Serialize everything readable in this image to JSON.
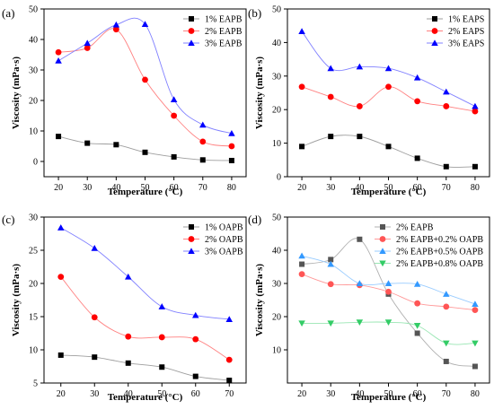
{
  "chart_data": [
    {
      "type": "scatter",
      "panel_label": "(a)",
      "xlabel": "Temperature (°C)",
      "ylabel": "Viscosity (mPa·s)",
      "xlim": [
        15,
        85
      ],
      "ylim": [
        -5,
        50
      ],
      "xticks": [
        20,
        30,
        40,
        50,
        60,
        70,
        80
      ],
      "yticks": [
        0,
        10,
        20,
        30,
        40,
        50
      ],
      "legend_position": "top-right",
      "smooth_lines": true,
      "series": [
        {
          "name": "1% EAPB",
          "marker": "square",
          "color": "#000000",
          "line_color": "#9e9e9e",
          "x": [
            20,
            30,
            40,
            50,
            60,
            70,
            80
          ],
          "y": [
            8.2,
            6.0,
            5.5,
            3.0,
            1.5,
            0.5,
            0.3
          ]
        },
        {
          "name": "2% EAPB",
          "marker": "circle",
          "color": "#ff0000",
          "line_color": "#ff8080",
          "x": [
            20,
            30,
            40,
            50,
            60,
            70,
            80
          ],
          "y": [
            35.8,
            37.2,
            43.3,
            26.8,
            15.0,
            6.5,
            5.0
          ]
        },
        {
          "name": "3% EAPB",
          "marker": "triangle-up",
          "color": "#0000ff",
          "line_color": "#8080ff",
          "x": [
            20,
            30,
            40,
            50,
            60,
            70,
            80
          ],
          "y": [
            33.0,
            38.8,
            44.8,
            45.0,
            20.3,
            12.0,
            9.2
          ]
        }
      ]
    },
    {
      "type": "scatter",
      "panel_label": "(b)",
      "xlabel": "Temperature (°C)",
      "ylabel": "Viscosity (mPa·s)",
      "xlim": [
        15,
        85
      ],
      "ylim": [
        0,
        50
      ],
      "xticks": [
        20,
        30,
        40,
        50,
        60,
        70,
        80
      ],
      "yticks": [
        0,
        10,
        20,
        30,
        40,
        50
      ],
      "legend_position": "top-right",
      "smooth_lines": true,
      "series": [
        {
          "name": "1% EAPS",
          "marker": "square",
          "color": "#000000",
          "line_color": "#9e9e9e",
          "x": [
            20,
            30,
            40,
            50,
            60,
            70,
            80
          ],
          "y": [
            9.0,
            12.0,
            12.0,
            9.0,
            5.5,
            3.0,
            3.0
          ]
        },
        {
          "name": "2% EAPS",
          "marker": "circle",
          "color": "#ff0000",
          "line_color": "#ff8080",
          "x": [
            20,
            30,
            40,
            50,
            60,
            70,
            80
          ],
          "y": [
            26.8,
            23.8,
            21.0,
            26.8,
            22.5,
            21.0,
            19.5
          ]
        },
        {
          "name": "3% EAPS",
          "marker": "triangle-up",
          "color": "#0000ff",
          "line_color": "#8080ff",
          "x": [
            20,
            30,
            40,
            50,
            60,
            70,
            80
          ],
          "y": [
            43.3,
            32.3,
            32.8,
            32.3,
            29.5,
            25.3,
            21.0
          ]
        }
      ]
    },
    {
      "type": "scatter",
      "panel_label": "(c)",
      "xlabel": "Temperature (°C)",
      "ylabel": "Viscosity (mPa·s)",
      "xlim": [
        15,
        75
      ],
      "ylim": [
        5,
        30
      ],
      "xticks": [
        20,
        30,
        40,
        50,
        60,
        70
      ],
      "yticks": [
        5,
        10,
        15,
        20,
        25,
        30
      ],
      "legend_position": "top-right",
      "smooth_lines": true,
      "series": [
        {
          "name": "1% OAPB",
          "marker": "square",
          "color": "#000000",
          "line_color": "#9e9e9e",
          "x": [
            20,
            30,
            40,
            50,
            60,
            70
          ],
          "y": [
            9.2,
            8.9,
            8.0,
            7.4,
            6.0,
            5.4
          ]
        },
        {
          "name": "2% OAPB",
          "marker": "circle",
          "color": "#ff0000",
          "line_color": "#ff8080",
          "x": [
            20,
            30,
            40,
            50,
            60,
            70
          ],
          "y": [
            21.0,
            14.9,
            12.0,
            11.9,
            11.6,
            8.5
          ]
        },
        {
          "name": "3% OAPB",
          "marker": "triangle-up",
          "color": "#0000ff",
          "line_color": "#8080ff",
          "x": [
            20,
            30,
            40,
            50,
            60,
            70
          ],
          "y": [
            28.4,
            25.3,
            21.0,
            16.5,
            15.2,
            14.6
          ]
        }
      ]
    },
    {
      "type": "scatter",
      "panel_label": "(d)",
      "xlabel": "Temperature (°C)",
      "ylabel": "Viscosity (mPa·s)",
      "xlim": [
        15,
        85
      ],
      "ylim": [
        0,
        50
      ],
      "xticks": [
        20,
        30,
        40,
        50,
        60,
        70,
        80
      ],
      "yticks": [
        10,
        20,
        30,
        40,
        50
      ],
      "legend_position": "top-right",
      "smooth_lines": true,
      "series": [
        {
          "name": "2% EAPB",
          "marker": "square",
          "color": "#555555",
          "line_color": "#b0b0b0",
          "x": [
            20,
            30,
            40,
            50,
            60,
            70,
            80
          ],
          "y": [
            35.8,
            37.2,
            43.3,
            26.8,
            15.0,
            6.5,
            5.0
          ]
        },
        {
          "name": "2% EAPB+0.2% OAPB",
          "marker": "circle",
          "color": "#ff5555",
          "line_color": "#ff9999",
          "x": [
            20,
            30,
            40,
            50,
            60,
            70,
            80
          ],
          "y": [
            32.8,
            29.8,
            29.5,
            27.5,
            24.0,
            23.0,
            22.0
          ]
        },
        {
          "name": "2% EAPB+0.5% OAPB",
          "marker": "triangle-up",
          "color": "#3399ff",
          "line_color": "#99ccff",
          "x": [
            20,
            30,
            40,
            50,
            60,
            70,
            80
          ],
          "y": [
            38.3,
            35.8,
            30.0,
            30.0,
            29.8,
            26.8,
            23.8
          ]
        },
        {
          "name": "2% EAPB+0.8% OAPB",
          "marker": "triangle-down",
          "color": "#33cc66",
          "line_color": "#99e6b3",
          "x": [
            20,
            30,
            40,
            50,
            60,
            70,
            80
          ],
          "y": [
            18.0,
            18.0,
            18.3,
            18.3,
            17.3,
            12.0,
            12.0
          ]
        }
      ]
    }
  ]
}
